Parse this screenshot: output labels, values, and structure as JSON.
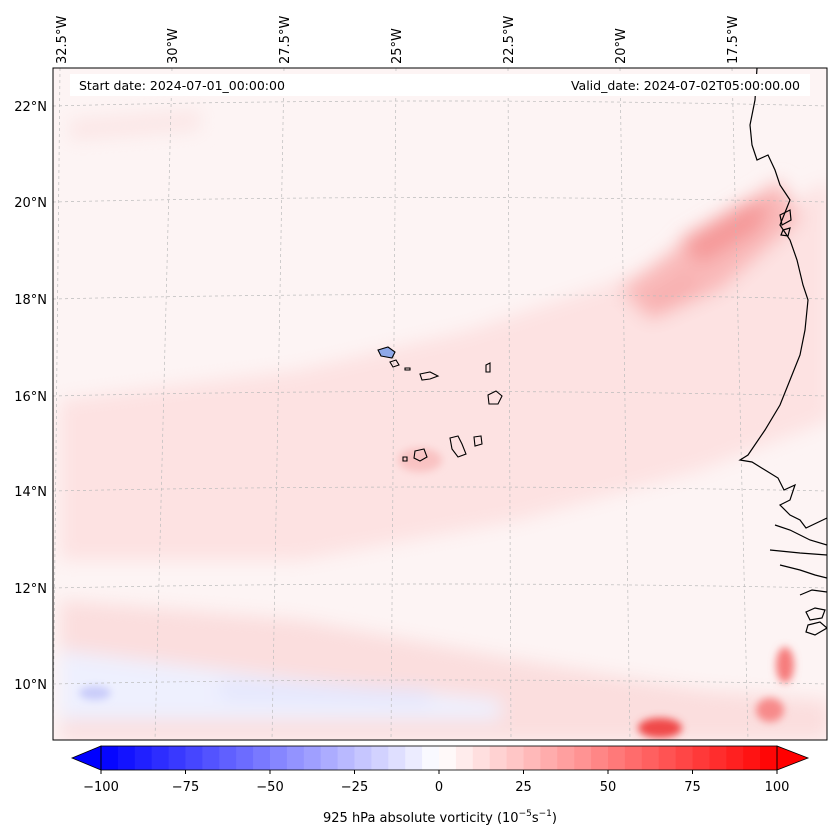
{
  "map": {
    "start_label": "Start date: 2024-07-01_00:00:00",
    "valid_label": "Valid_date: 2024-07-02T05:00:00.00",
    "lon_labels": [
      "32.5°W",
      "30°W",
      "27.5°W",
      "25°W",
      "22.5°W",
      "20°W",
      "17.5°W"
    ],
    "lat_labels": [
      "22°N",
      "20°N",
      "18°N",
      "16°N",
      "14°N",
      "12°N",
      "10°N"
    ],
    "colorbar": {
      "min": -100,
      "max": 100,
      "ticks": [
        "−100",
        "−75",
        "−50",
        "−25",
        "0",
        "25",
        "50",
        "75",
        "100"
      ],
      "label_text": "925 hPa absolute vorticity (10",
      "label_exp1": "−5",
      "label_mid": "s",
      "label_exp2": "−1",
      "label_end": ")",
      "negative_color": "#0000ff",
      "positive_color": "#ff0000"
    },
    "style": {
      "coastline_color": "#000000",
      "gridline_color": "#bbbbbb",
      "background": "#fdf4f4"
    }
  }
}
